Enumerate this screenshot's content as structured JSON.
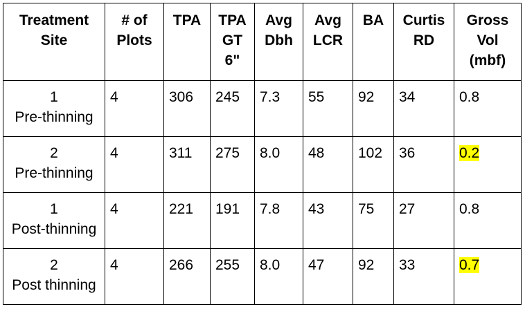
{
  "table": {
    "headers": [
      [
        "Treatment",
        "Site"
      ],
      [
        "# of",
        "Plots"
      ],
      [
        "TPA"
      ],
      [
        "TPA",
        "GT",
        "6\""
      ],
      [
        "Avg",
        "Dbh"
      ],
      [
        "Avg",
        "LCR"
      ],
      [
        "BA"
      ],
      [
        "Curtis",
        "RD"
      ],
      [
        "Gross",
        "Vol",
        "(mbf)"
      ]
    ],
    "rows": [
      {
        "site": [
          "1",
          "Pre-thinning"
        ],
        "plots": "4",
        "tpa": "306",
        "tpa_gt6": "245",
        "avg_dbh": "7.3",
        "avg_lcr": "55",
        "ba": "92",
        "curtis_rd": "34",
        "gross_vol": "0.8",
        "gross_vol_highlighted": false
      },
      {
        "site": [
          "2",
          "Pre-thinning"
        ],
        "plots": "4",
        "tpa": "311",
        "tpa_gt6": "275",
        "avg_dbh": "8.0",
        "avg_lcr": "48",
        "ba": "102",
        "curtis_rd": "36",
        "gross_vol": "0.2",
        "gross_vol_highlighted": true
      },
      {
        "site": [
          "1",
          "Post-thinning"
        ],
        "plots": "4",
        "tpa": "221",
        "tpa_gt6": "191",
        "avg_dbh": "7.8",
        "avg_lcr": "43",
        "ba": "75",
        "curtis_rd": "27",
        "gross_vol": "0.8",
        "gross_vol_highlighted": false
      },
      {
        "site": [
          "2",
          "Post thinning"
        ],
        "plots": "4",
        "tpa": "266",
        "tpa_gt6": "255",
        "avg_dbh": "8.0",
        "avg_lcr": "47",
        "ba": "92",
        "curtis_rd": "33",
        "gross_vol": "0.7",
        "gross_vol_highlighted": true
      }
    ],
    "highlight_color": "#ffff00"
  }
}
